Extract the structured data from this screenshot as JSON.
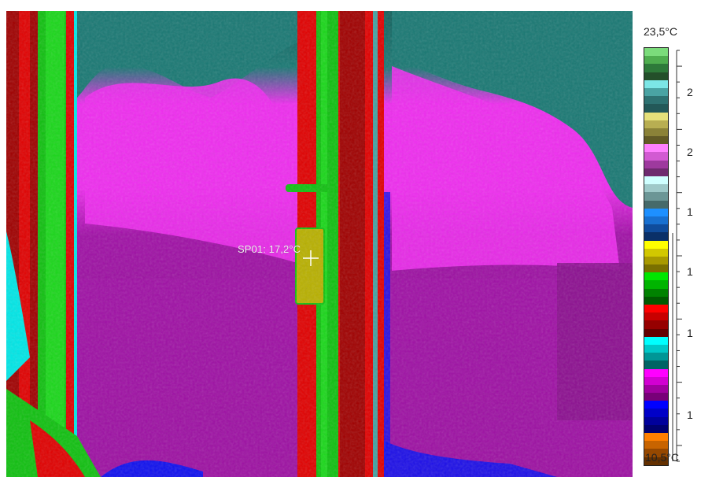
{
  "measurement": {
    "spot_label": "SP01: 17,2°C",
    "spot_value_c": 17.2
  },
  "scale": {
    "max_label": "23,5°C",
    "min_label": "10,5°C",
    "max_c": 23.5,
    "min_c": 10.5,
    "tick_labels": [
      "2",
      "2",
      "1",
      "1",
      "1",
      "1"
    ]
  },
  "palette": {
    "colors": [
      "#7bdc7b",
      "#4fae4f",
      "#2e7a3a",
      "#244f2a",
      "#7ce6e6",
      "#4aa3a3",
      "#2e7272",
      "#235858",
      "#e6e07a",
      "#b8ae52",
      "#8b8238",
      "#625a26",
      "#ff80ff",
      "#d25ad2",
      "#9e3a9e",
      "#6e2a6e",
      "#cfffff",
      "#9ec9c9",
      "#6c9696",
      "#466a6a",
      "#1e90ff",
      "#1870d0",
      "#0f4c9c",
      "#0a3068",
      "#ffff00",
      "#d2c800",
      "#a89a00",
      "#7a7000",
      "#00e600",
      "#00b400",
      "#008200",
      "#005a00",
      "#ff0000",
      "#c80000",
      "#960000",
      "#640000",
      "#00ffff",
      "#00c8c8",
      "#009696",
      "#006464",
      "#ff00ff",
      "#d200d2",
      "#a000a0",
      "#780078",
      "#0000ff",
      "#0000c8",
      "#00009c",
      "#000070",
      "#ff8000",
      "#c86400",
      "#964800",
      "#643000"
    ]
  },
  "image_colors": {
    "teal": "#197873",
    "teal_dark": "#12605c",
    "magenta": "#ee2cee",
    "purple": "#a010a6",
    "purple_dark": "#8a108e",
    "red": "#e00000",
    "red_dark": "#a00000",
    "green": "#10c010",
    "green_bright": "#22e622",
    "cyan": "#00e6e6",
    "blue": "#1010ee",
    "olive": "#b8b000"
  }
}
